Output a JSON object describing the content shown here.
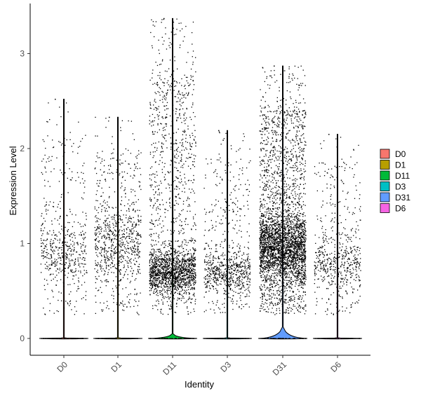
{
  "chart_data": {
    "type": "violin",
    "xlabel": "Identity",
    "ylabel": "Expression Level",
    "ylim": [
      -0.18,
      3.4
    ],
    "yticks": [
      0,
      1,
      2,
      3
    ],
    "categories": [
      "D0",
      "D1",
      "D11",
      "D3",
      "D31",
      "D6"
    ],
    "colors": {
      "D0": "#F8766D",
      "D1": "#B79F00",
      "D11": "#00BA38",
      "D3": "#00BFC4",
      "D31": "#619CFF",
      "D6": "#F564E3"
    },
    "groups": [
      {
        "name": "D0",
        "max": 2.52,
        "violin_peak": 0.0,
        "points": 550,
        "median_nonzero": 0.7
      },
      {
        "name": "D1",
        "max": 2.33,
        "violin_peak": 0.0,
        "points": 850,
        "median_nonzero": 0.8
      },
      {
        "name": "D11",
        "max": 3.37,
        "violin_peak": 0.05,
        "points": 2200,
        "median_nonzero": 0.5
      },
      {
        "name": "D3",
        "max": 2.19,
        "violin_peak": 0.0,
        "points": 800,
        "median_nonzero": 0.5
      },
      {
        "name": "D31",
        "max": 2.87,
        "violin_peak": 0.12,
        "points": 3600,
        "median_nonzero": 0.75
      },
      {
        "name": "D6",
        "max": 2.15,
        "violin_peak": 0.0,
        "points": 600,
        "median_nonzero": 0.6
      }
    ],
    "legend": {
      "position": "right",
      "entries": [
        "D0",
        "D1",
        "D11",
        "D3",
        "D31",
        "D6"
      ]
    },
    "grid": false
  }
}
